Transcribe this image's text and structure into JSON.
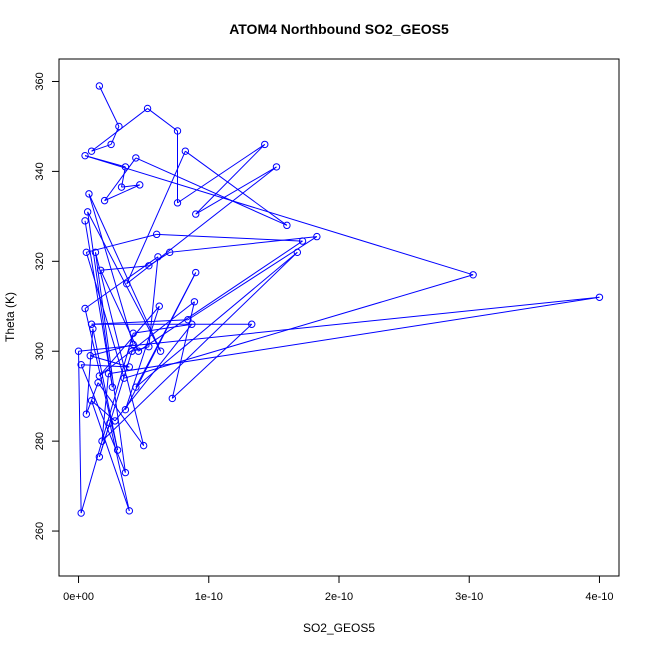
{
  "chart_data": {
    "type": "line",
    "title": "ATOM4 Northbound SO2_GEOS5",
    "xlabel": "SO2_GEOS5",
    "ylabel": "Theta (K)",
    "xlim": [
      -1.5e-11,
      4.15e-10
    ],
    "ylim": [
      250,
      365
    ],
    "x_ticks": [
      0,
      1e-10,
      2e-10,
      3e-10,
      4e-10
    ],
    "x_tick_labels": [
      "0e+00",
      "1e-10",
      "2e-10",
      "3e-10",
      "4e-10"
    ],
    "y_ticks": [
      260,
      280,
      300,
      320,
      340,
      360
    ],
    "y_tick_labels": [
      "260",
      "280",
      "300",
      "320",
      "340",
      "360"
    ],
    "grid": false,
    "markers": "open-circle",
    "color": "#0000ff",
    "series": [
      {
        "points": [
          [
            1.6e-11,
            359
          ],
          [
            3.1e-11,
            350
          ],
          [
            2.5e-11,
            346
          ],
          [
            1e-11,
            344.5
          ],
          [
            5.3e-11,
            354
          ],
          [
            7.6e-11,
            349
          ],
          [
            7.6e-11,
            333
          ],
          [
            1.43e-10,
            346
          ],
          [
            9e-11,
            330.5
          ],
          [
            1.52e-10,
            341
          ],
          [
            3.7e-11,
            315
          ],
          [
            8.2e-11,
            344.5
          ],
          [
            1.6e-10,
            328
          ],
          [
            4.4e-11,
            343
          ],
          [
            2e-11,
            333.5
          ],
          [
            4.7e-11,
            337
          ],
          [
            3.3e-11,
            336.5
          ],
          [
            3.6e-11,
            341
          ],
          [
            5e-12,
            343.5
          ],
          [
            3.03e-10,
            317
          ],
          [
            3.5e-11,
            294
          ],
          [
            6e-12,
            322
          ],
          [
            6e-11,
            326
          ],
          [
            1.72e-10,
            324.5
          ],
          [
            4.6e-11,
            300
          ],
          [
            1.7e-11,
            318
          ],
          [
            5.4e-11,
            319
          ],
          [
            7e-11,
            322
          ],
          [
            1.83e-10,
            325.5
          ],
          [
            8.4e-11,
            307
          ],
          [
            1e-11,
            306
          ],
          [
            1.33e-10,
            306
          ],
          [
            7.2e-11,
            289.5
          ],
          [
            8.9e-11,
            311
          ],
          [
            1.6e-11,
            294.5
          ],
          [
            6.2e-11,
            310
          ],
          [
            3.6e-11,
            287
          ],
          [
            9e-11,
            317.5
          ],
          [
            4.4e-11,
            292
          ],
          [
            1.68e-10,
            322
          ],
          [
            1.8e-11,
            280
          ],
          [
            2.3e-11,
            295
          ],
          [
            4e-10,
            312
          ],
          [
            0,
            300
          ],
          [
            2e-12,
            264
          ],
          [
            4.2e-11,
            304
          ],
          [
            8.7e-11,
            306
          ],
          [
            2.8e-11,
            284.5
          ],
          [
            1e-11,
            289
          ],
          [
            3.9e-11,
            264.5
          ],
          [
            2.4e-11,
            284
          ],
          [
            1.6e-11,
            276.5
          ],
          [
            4.1e-11,
            300
          ],
          [
            5.4e-11,
            301
          ],
          [
            6.1e-11,
            321
          ],
          [
            5e-12,
            309.5
          ],
          [
            3e-11,
            278
          ],
          [
            1.1e-11,
            305
          ],
          [
            6e-12,
            286
          ],
          [
            1.5e-11,
            293
          ],
          [
            5e-11,
            279
          ],
          [
            1.3e-11,
            322
          ],
          [
            3.6e-11,
            273
          ],
          [
            2e-12,
            297
          ],
          [
            3.9e-11,
            296.5
          ],
          [
            9e-12,
            299
          ],
          [
            4.2e-11,
            301.5
          ],
          [
            8e-12,
            335
          ],
          [
            6.3e-11,
            300
          ],
          [
            7e-12,
            331
          ],
          [
            2.6e-11,
            292
          ],
          [
            5e-12,
            329
          ]
        ]
      }
    ]
  }
}
